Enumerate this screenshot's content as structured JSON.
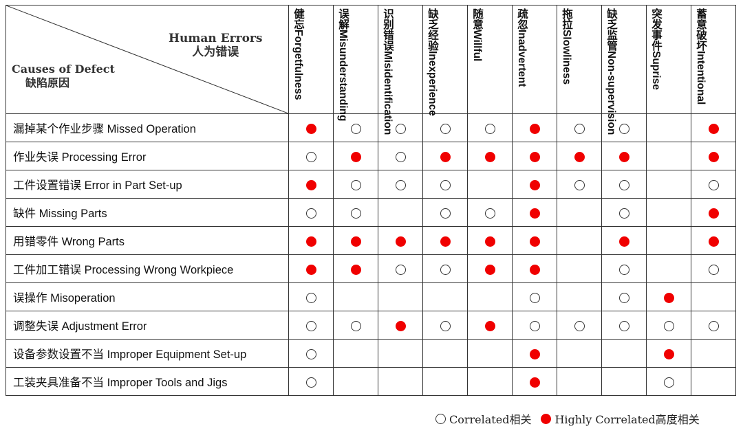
{
  "corner": {
    "human_errors_en": "Human Errors",
    "human_errors_zh": "人为错误",
    "causes_en": "Causes of Defect",
    "causes_zh": "缺陷原因"
  },
  "columns": [
    {
      "zh": "健忘",
      "en": "Forgetfulness"
    },
    {
      "zh": "误解",
      "en": "Misunderstanding"
    },
    {
      "zh": "识别错误",
      "en": "Misidentification"
    },
    {
      "zh": "缺乏经验",
      "en": "Inexperience"
    },
    {
      "zh": "随意",
      "en": "Willful"
    },
    {
      "zh": "疏忽",
      "en": "Inadvertent"
    },
    {
      "zh": "拖拉",
      "en": "Slowliness"
    },
    {
      "zh": "缺乏监管",
      "en": "Non-supervision"
    },
    {
      "zh": "突发事件",
      "en": "Suprise"
    },
    {
      "zh": "蓄意破坏",
      "en": "Intentional"
    }
  ],
  "rows": [
    {
      "label": "漏掉某个作业步骤 Missed Operation",
      "cells": [
        "H",
        "C",
        "C",
        "C",
        "C",
        "H",
        "C",
        "C",
        "",
        "H"
      ]
    },
    {
      "label": "作业失误 Processing Error",
      "cells": [
        "C",
        "H",
        "C",
        "H",
        "H",
        "H",
        "H",
        "H",
        "",
        "H"
      ]
    },
    {
      "label": "工件设置错误 Error in Part Set-up",
      "cells": [
        "H",
        "C",
        "C",
        "C",
        "",
        "H",
        "C",
        "C",
        "",
        "C"
      ]
    },
    {
      "label": "缺件 Missing Parts",
      "cells": [
        "C",
        "C",
        "",
        "C",
        "C",
        "H",
        "",
        "C",
        "",
        "H"
      ]
    },
    {
      "label": "用错零件 Wrong Parts",
      "cells": [
        "H",
        "H",
        "H",
        "H",
        "H",
        "H",
        "",
        "H",
        "",
        "H"
      ]
    },
    {
      "label": "工件加工错误 Processing Wrong Workpiece",
      "cells": [
        "H",
        "H",
        "C",
        "C",
        "H",
        "H",
        "",
        "C",
        "",
        "C"
      ]
    },
    {
      "label": "误操作 Misoperation",
      "cells": [
        "C",
        "",
        "",
        "",
        "",
        "C",
        "",
        "C",
        "H",
        ""
      ]
    },
    {
      "label": "调整失误 Adjustment Error",
      "cells": [
        "C",
        "C",
        "H",
        "C",
        "H",
        "C",
        "C",
        "C",
        "C",
        "C"
      ]
    },
    {
      "label": "设备参数设置不当 Improper Equipment Set-up",
      "cells": [
        "C",
        "",
        "",
        "",
        "",
        "H",
        "",
        "",
        "H",
        ""
      ]
    },
    {
      "label": "工装夹具准备不当 Improper Tools and Jigs",
      "cells": [
        "C",
        "",
        "",
        "",
        "",
        "H",
        "",
        "",
        "C",
        ""
      ]
    }
  ],
  "legend": {
    "correlated": "Correlated相关",
    "highly_correlated": "Highly Correlated高度相关"
  },
  "colors": {
    "high": "#f00000",
    "border": "#333333"
  }
}
